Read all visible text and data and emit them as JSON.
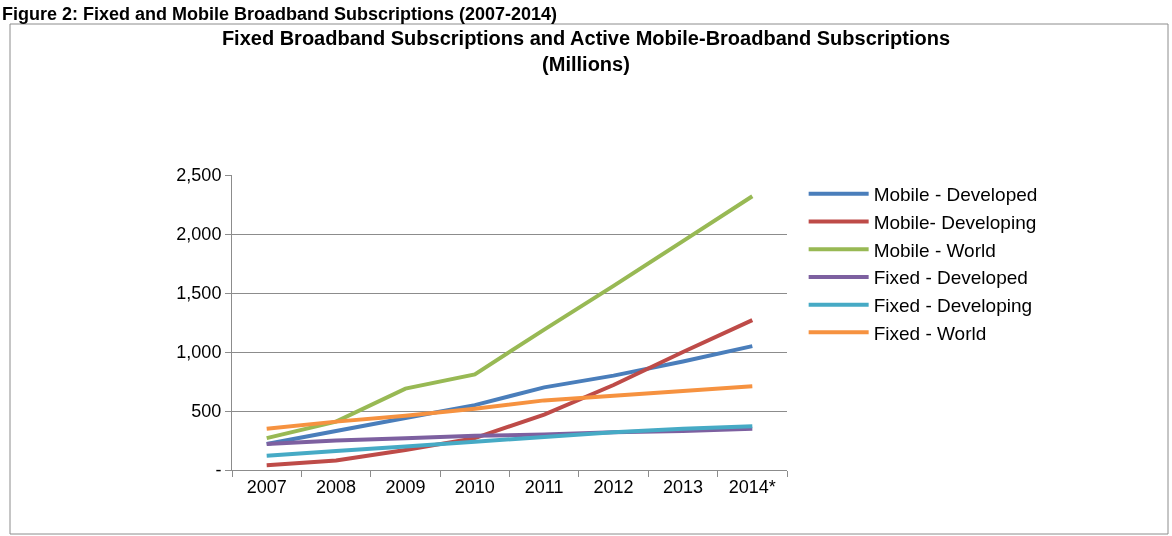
{
  "chart_data": {
    "type": "line",
    "title": "Fixed Broadband Subscriptions and Active Mobile-Broadband Subscriptions (Millions)",
    "annotations": [
      "Figure 2: Fixed and Mobile Broadband Subscriptions (2007-2014)"
    ],
    "categories": [
      "2007",
      "2008",
      "2009",
      "2010",
      "2011",
      "2012",
      "2013",
      "2014*"
    ],
    "series": [
      {
        "name": "Mobile - Developed",
        "color": "#4a7ebb",
        "values": [
          220,
          330,
          440,
          550,
          700,
          800,
          920,
          1050
        ]
      },
      {
        "name": "Mobile- Developing",
        "color": "#be4b48",
        "values": [
          40,
          80,
          170,
          270,
          470,
          720,
          1000,
          1270
        ]
      },
      {
        "name": "Mobile - World",
        "color": "#98b954",
        "values": [
          270,
          410,
          690,
          810,
          1190,
          1560,
          1940,
          2320
        ]
      },
      {
        "name": "Fixed - Developed",
        "color": "#7d60a0",
        "values": [
          220,
          250,
          270,
          290,
          300,
          320,
          330,
          350
        ]
      },
      {
        "name": "Fixed - Developing",
        "color": "#46aac5",
        "values": [
          120,
          160,
          200,
          240,
          280,
          320,
          350,
          370
        ]
      },
      {
        "name": "Fixed - World",
        "color": "#f69240",
        "values": [
          350,
          410,
          460,
          520,
          590,
          630,
          670,
          710
        ]
      }
    ],
    "ylim": [
      0,
      2500
    ],
    "yticks": [
      {
        "value": 0,
        "label": "-"
      },
      {
        "value": 500,
        "label": "500"
      },
      {
        "value": 1000,
        "label": "1,000"
      },
      {
        "value": 1500,
        "label": "1,500"
      },
      {
        "value": 2000,
        "label": "2,000"
      },
      {
        "value": 2500,
        "label": "2,500"
      }
    ],
    "grid": "y",
    "legend": "right",
    "marker": "none",
    "line_style": "solid"
  }
}
